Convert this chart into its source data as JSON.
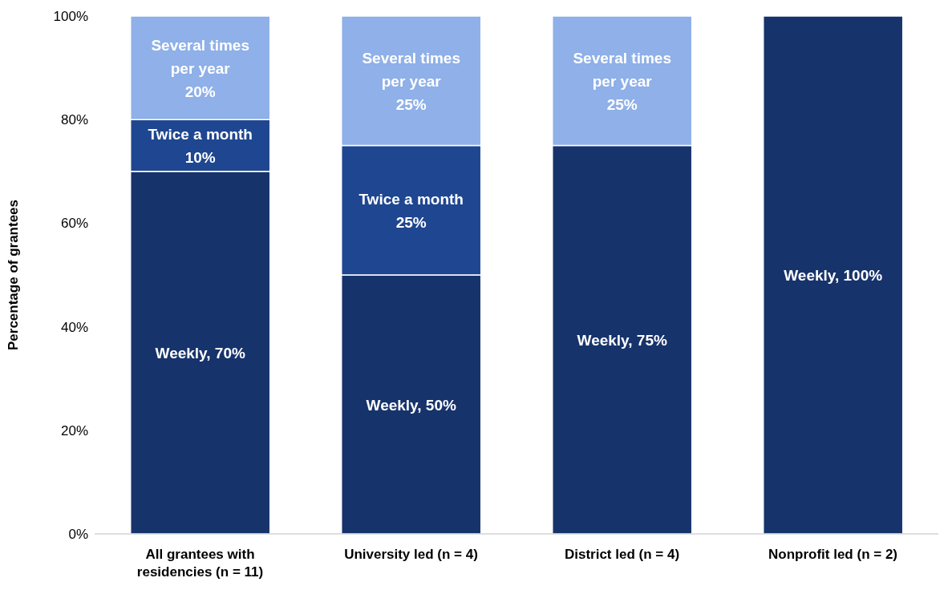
{
  "chart_data": {
    "type": "bar",
    "stacked": true,
    "ylabel": "Percentage of grantees",
    "categories": [
      "All grantees with residencies (n = 11)",
      "University led (n = 4)",
      "District led (n = 4)",
      "Nonprofit led (n = 2)"
    ],
    "series": [
      {
        "color": "#17336b",
        "values": [
          70,
          50,
          75,
          100
        ],
        "value_labels": [
          "Weekly, 70%",
          "Weekly, 50%",
          "Weekly, 75%",
          "Weekly, 100%"
        ]
      },
      {
        "color": "#1f4690",
        "values": [
          10,
          25,
          0,
          0
        ],
        "value_labels": [
          "Twice a month\n10%",
          "Twice a month\n25%",
          null,
          null
        ]
      },
      {
        "color": "#8fb0e8",
        "values": [
          20,
          25,
          25,
          0
        ],
        "value_labels": [
          "Several times\nper year\n20%",
          "Several times\nper year\n25%",
          "Several times\nper year\n25%",
          null
        ]
      }
    ],
    "ylim": [
      0,
      100
    ],
    "yticks": [
      {
        "value": 0,
        "label": "0%"
      },
      {
        "value": 20,
        "label": "20%"
      },
      {
        "value": 40,
        "label": "40%"
      },
      {
        "value": 60,
        "label": "60%"
      },
      {
        "value": 80,
        "label": "80%"
      },
      {
        "value": 100,
        "label": "100%"
      }
    ],
    "grid": false,
    "legend": false
  }
}
